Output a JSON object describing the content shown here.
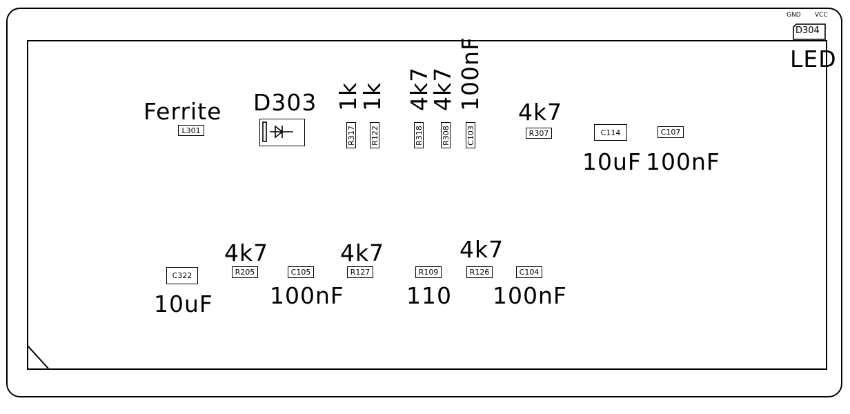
{
  "board": {
    "top_components": [
      {
        "ref": "L301",
        "value": "Ferrite"
      },
      {
        "ref": "D303",
        "value": "D303"
      },
      {
        "ref": "R317",
        "value": "1k"
      },
      {
        "ref": "R122",
        "value": "1k"
      },
      {
        "ref": "R318",
        "value": "4k7"
      },
      {
        "ref": "R308",
        "value": "4k7"
      },
      {
        "ref": "C103",
        "value": "100nF"
      },
      {
        "ref": "R307",
        "value": "4k7"
      },
      {
        "ref": "C114",
        "value": "10uF"
      },
      {
        "ref": "C107",
        "value": "100nF"
      }
    ],
    "bottom_components": [
      {
        "ref": "C322",
        "value": "10uF"
      },
      {
        "ref": "R205",
        "value": "4k7"
      },
      {
        "ref": "C105",
        "value": "100nF"
      },
      {
        "ref": "R127",
        "value": "4k7"
      },
      {
        "ref": "R109",
        "value": "110"
      },
      {
        "ref": "R126",
        "value": "4k7"
      },
      {
        "ref": "C104",
        "value": "100nF"
      }
    ],
    "led": {
      "ref": "D304",
      "value": "LED",
      "pin_gnd": "GND",
      "pin_vcc": "VCC"
    }
  }
}
